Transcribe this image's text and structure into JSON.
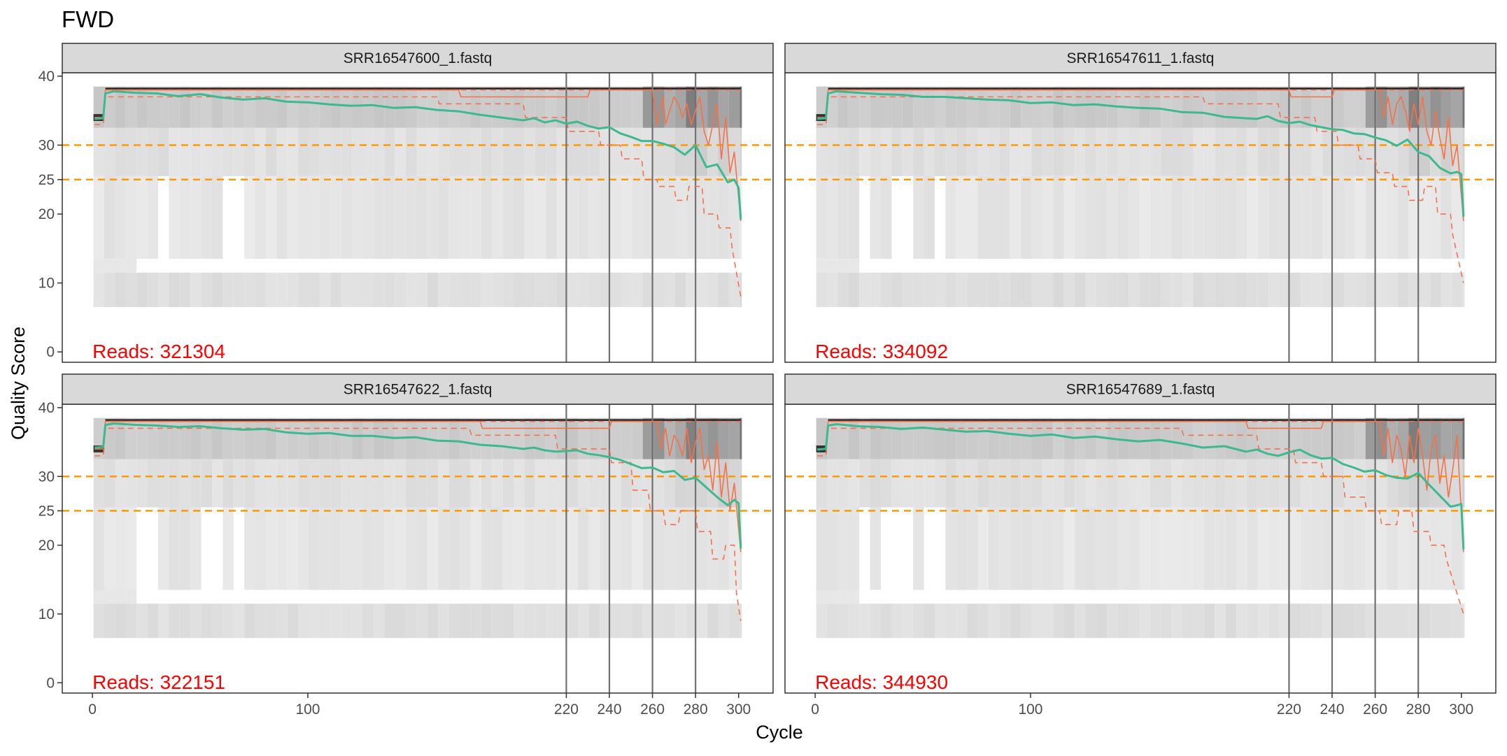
{
  "chart_data": {
    "type": "line",
    "title": "FWD",
    "xlabel": "Cycle",
    "ylabel": "Quality Score",
    "xlim": [
      -14,
      316
    ],
    "ylim": [
      -1.5,
      40.5
    ],
    "x_ticks": [
      0,
      100,
      220,
      240,
      260,
      280,
      300
    ],
    "y_ticks": [
      0,
      10,
      20,
      25,
      30,
      40
    ],
    "grid": false,
    "legend": "none",
    "colors": {
      "mean": "#3db88f",
      "median": "#f4724a",
      "quartile": "#f4724a",
      "threshold": "#ff9900",
      "cutoff": "#707070",
      "reads": "#ff0000",
      "heat_low": "#f0f0f0",
      "heat_high": "#404040",
      "strip_fill": "#d9d9d9"
    },
    "reads_prefix": "Reads:  ",
    "reference_hlines": [
      30,
      25
    ],
    "reference_vlines": [
      220,
      240,
      260,
      280
    ],
    "panels": [
      {
        "strip": "SRR16547600_1.fastq",
        "reads": "321304",
        "mean": {
          "x": [
            1,
            5,
            6,
            10,
            20,
            30,
            40,
            50,
            60,
            70,
            80,
            90,
            100,
            110,
            120,
            130,
            140,
            150,
            160,
            170,
            180,
            190,
            200,
            205,
            210,
            215,
            220,
            225,
            230,
            235,
            240,
            245,
            250,
            255,
            260,
            265,
            270,
            275,
            280,
            285,
            290,
            295,
            298,
            300,
            301
          ],
          "y": [
            33.8,
            33.9,
            37.5,
            37.8,
            37.6,
            37.5,
            37.1,
            37.4,
            36.9,
            36.6,
            36.8,
            36.3,
            36.2,
            35.9,
            35.7,
            35.8,
            35.4,
            35.5,
            35.1,
            34.9,
            34.4,
            34.0,
            33.6,
            33.9,
            33.3,
            33.6,
            33.1,
            33.4,
            32.8,
            32.4,
            32.6,
            31.7,
            31.2,
            30.6,
            30.6,
            30.2,
            29.7,
            28.6,
            30.0,
            26.8,
            27.2,
            24.6,
            25.0,
            23.8,
            19.2
          ]
        },
        "median": {
          "x": [
            1,
            5,
            6,
            170,
            171,
            230,
            231,
            260,
            262,
            265,
            266,
            270,
            272,
            274,
            276,
            278,
            280,
            282,
            284,
            286,
            288,
            290,
            292,
            294,
            296,
            298,
            301
          ],
          "y": [
            34,
            34,
            38,
            38,
            37,
            37,
            38,
            38,
            33,
            37,
            33,
            37,
            36,
            34,
            36,
            33,
            35,
            37,
            32,
            30,
            33,
            36,
            28,
            34,
            26,
            29,
            19
          ]
        },
        "q25": {
          "x": [
            1,
            5,
            6,
            160,
            161,
            200,
            201,
            220,
            221,
            235,
            236,
            245,
            246,
            255,
            256,
            262,
            263,
            270,
            271,
            276,
            277,
            283,
            284,
            290,
            291,
            296,
            297,
            301
          ],
          "y": [
            33,
            33,
            37,
            37,
            36,
            36,
            34,
            34,
            32,
            32,
            30,
            30,
            28,
            28,
            25,
            25,
            24,
            24,
            22,
            22,
            24,
            24,
            20,
            20,
            18,
            18,
            15,
            8
          ]
        },
        "q75": {
          "x": [
            1,
            5,
            6,
            301
          ],
          "y": [
            34,
            34,
            38,
            38
          ]
        }
      },
      {
        "strip": "SRR16547611_1.fastq",
        "reads": "334092",
        "mean": {
          "x": [
            1,
            5,
            6,
            10,
            20,
            30,
            40,
            50,
            60,
            70,
            80,
            90,
            100,
            110,
            120,
            130,
            140,
            150,
            160,
            170,
            180,
            190,
            200,
            205,
            210,
            215,
            220,
            225,
            230,
            235,
            240,
            245,
            250,
            255,
            260,
            265,
            270,
            275,
            280,
            285,
            290,
            295,
            298,
            300,
            301
          ],
          "y": [
            33.8,
            33.9,
            37.5,
            37.8,
            37.6,
            37.4,
            37.3,
            37.0,
            37.0,
            36.8,
            36.6,
            36.5,
            36.1,
            36.2,
            35.8,
            35.9,
            35.6,
            35.4,
            35.3,
            34.8,
            34.7,
            34.1,
            33.9,
            33.8,
            34.2,
            33.5,
            33.2,
            33.4,
            32.9,
            32.6,
            32.3,
            32.2,
            31.7,
            31.6,
            31.1,
            30.7,
            29.9,
            30.8,
            29.0,
            28.4,
            26.7,
            25.9,
            26.1,
            25.8,
            19.6
          ]
        },
        "median": {
          "x": [
            1,
            5,
            6,
            220,
            221,
            240,
            241,
            262,
            264,
            266,
            268,
            270,
            272,
            274,
            276,
            278,
            280,
            282,
            284,
            286,
            288,
            290,
            292,
            294,
            296,
            298,
            301
          ],
          "y": [
            34,
            34,
            38,
            38,
            37,
            37,
            38,
            38,
            34,
            37,
            33,
            36,
            37,
            35,
            32,
            36,
            33,
            37,
            32,
            30,
            35,
            31,
            28,
            34,
            27,
            30,
            19
          ]
        },
        "q25": {
          "x": [
            1,
            5,
            6,
            180,
            181,
            215,
            216,
            232,
            233,
            242,
            243,
            252,
            253,
            260,
            261,
            268,
            269,
            275,
            276,
            282,
            283,
            288,
            289,
            295,
            296,
            301
          ],
          "y": [
            33,
            33,
            37,
            37,
            36,
            36,
            34,
            34,
            32,
            32,
            30,
            30,
            28,
            28,
            26,
            26,
            24,
            24,
            22,
            22,
            24,
            24,
            20,
            20,
            17,
            10
          ]
        },
        "q75": {
          "x": [
            1,
            5,
            6,
            301
          ],
          "y": [
            34,
            34,
            38,
            38
          ]
        }
      },
      {
        "strip": "SRR16547622_1.fastq",
        "reads": "322151",
        "mean": {
          "x": [
            1,
            5,
            6,
            10,
            20,
            30,
            40,
            50,
            60,
            70,
            80,
            90,
            100,
            110,
            120,
            130,
            140,
            150,
            160,
            170,
            180,
            190,
            200,
            205,
            210,
            215,
            220,
            225,
            230,
            235,
            240,
            245,
            250,
            255,
            260,
            265,
            270,
            275,
            280,
            285,
            290,
            295,
            298,
            300,
            301
          ],
          "y": [
            34.2,
            34.3,
            37.5,
            37.7,
            37.5,
            37.4,
            37.2,
            37.3,
            37.0,
            36.8,
            36.9,
            36.4,
            36.2,
            36.3,
            35.9,
            35.9,
            35.6,
            35.7,
            35.2,
            35.1,
            34.6,
            34.4,
            34.0,
            34.2,
            33.8,
            33.6,
            33.7,
            33.8,
            33.3,
            33.1,
            32.8,
            32.4,
            31.8,
            31.2,
            31.3,
            30.6,
            30.8,
            29.5,
            29.8,
            28.4,
            27.0,
            25.8,
            26.6,
            26.1,
            19.5
          ]
        },
        "median": {
          "x": [
            1,
            5,
            6,
            180,
            181,
            240,
            241,
            262,
            264,
            266,
            268,
            270,
            272,
            274,
            276,
            278,
            280,
            282,
            284,
            286,
            288,
            290,
            292,
            294,
            296,
            298,
            301
          ],
          "y": [
            34,
            34,
            38,
            38,
            37,
            37,
            38,
            38,
            34,
            37,
            33,
            36,
            35,
            33,
            37,
            32,
            35,
            37,
            31,
            33,
            28,
            35,
            27,
            32,
            25,
            29,
            19
          ]
        },
        "q25": {
          "x": [
            1,
            5,
            6,
            175,
            176,
            215,
            216,
            240,
            241,
            250,
            251,
            258,
            259,
            265,
            266,
            272,
            273,
            280,
            281,
            287,
            288,
            293,
            294,
            298,
            299,
            301
          ],
          "y": [
            33,
            33,
            37,
            37,
            36,
            36,
            34,
            34,
            32,
            32,
            28,
            28,
            25,
            25,
            23,
            23,
            25,
            25,
            22,
            22,
            18,
            18,
            20,
            20,
            13,
            9
          ]
        },
        "q75": {
          "x": [
            1,
            5,
            6,
            301
          ],
          "y": [
            34,
            34,
            38,
            38
          ]
        }
      },
      {
        "strip": "SRR16547689_1.fastq",
        "reads": "344930",
        "mean": {
          "x": [
            1,
            5,
            6,
            10,
            20,
            30,
            40,
            50,
            60,
            70,
            80,
            90,
            100,
            110,
            120,
            130,
            140,
            150,
            160,
            170,
            180,
            190,
            200,
            205,
            210,
            215,
            220,
            225,
            230,
            235,
            240,
            245,
            250,
            255,
            260,
            265,
            270,
            275,
            280,
            285,
            290,
            295,
            298,
            300,
            301
          ],
          "y": [
            33.9,
            34.0,
            37.4,
            37.6,
            37.3,
            37.2,
            36.9,
            37.1,
            36.8,
            36.5,
            36.6,
            36.2,
            35.9,
            36.1,
            35.6,
            35.8,
            35.4,
            35.1,
            35.3,
            34.8,
            34.2,
            34.4,
            33.6,
            33.9,
            33.3,
            33.0,
            33.5,
            33.9,
            33.1,
            32.6,
            32.7,
            31.8,
            31.3,
            30.7,
            30.9,
            30.2,
            29.8,
            29.7,
            30.5,
            28.8,
            27.2,
            25.6,
            25.8,
            26.0,
            19.4
          ]
        },
        "median": {
          "x": [
            1,
            5,
            6,
            200,
            201,
            235,
            236,
            262,
            264,
            266,
            268,
            270,
            272,
            274,
            276,
            278,
            280,
            282,
            284,
            286,
            288,
            290,
            292,
            294,
            296,
            298,
            301
          ],
          "y": [
            34,
            34,
            38,
            38,
            37,
            37,
            38,
            38,
            33,
            37,
            32,
            36,
            34,
            30,
            36,
            32,
            37,
            33,
            28,
            34,
            36,
            29,
            33,
            27,
            31,
            36,
            19
          ]
        },
        "q25": {
          "x": [
            1,
            5,
            6,
            170,
            171,
            205,
            206,
            222,
            223,
            235,
            236,
            245,
            246,
            255,
            256,
            262,
            263,
            270,
            271,
            277,
            278,
            285,
            286,
            292,
            293,
            301
          ],
          "y": [
            33,
            33,
            37,
            37,
            36,
            36,
            34,
            34,
            32,
            32,
            30,
            30,
            27,
            27,
            25,
            25,
            23,
            23,
            25,
            25,
            22,
            22,
            20,
            20,
            18,
            10
          ]
        },
        "q75": {
          "x": [
            1,
            5,
            6,
            301
          ],
          "y": [
            34,
            34,
            38,
            38
          ]
        }
      }
    ]
  }
}
